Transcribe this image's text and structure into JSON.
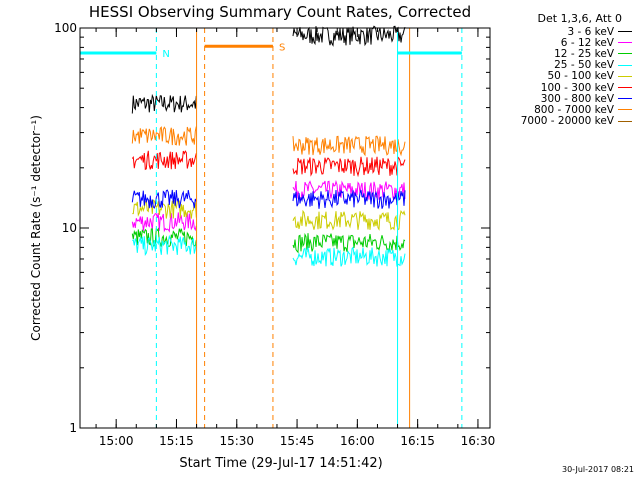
{
  "chart_data": {
    "type": "line",
    "title": "HESSI Observing Summary Count Rates, Corrected",
    "xlabel": "Start Time (29-Jul-17 14:51:42)",
    "ylabel": "Corrected Count Rate (s⁻¹ detector⁻¹)",
    "ylim": [
      1,
      100
    ],
    "yscale": "log",
    "yticks": [
      "1",
      "10",
      "100"
    ],
    "xlim": [
      "14:51",
      "16:33"
    ],
    "xticks": [
      "15:00",
      "15:15",
      "15:30",
      "15:45",
      "16:00",
      "16:15",
      "16:30"
    ],
    "grid": false,
    "legend_position": "right",
    "legend_header": "Det 1,3,6, Att 0",
    "series": [
      {
        "name": "3 - 6 keV",
        "color": "#000000",
        "segments": [
          {
            "start": "15:04",
            "end": "15:20",
            "level": 42
          },
          {
            "start": "15:44",
            "end": "16:12",
            "level": 92
          }
        ]
      },
      {
        "name": "6 - 12 keV",
        "color": "#ff00ff",
        "segments": [
          {
            "start": "15:04",
            "end": "15:20",
            "level": 10.8
          },
          {
            "start": "15:44",
            "end": "16:12",
            "level": 15.5
          }
        ]
      },
      {
        "name": "12 - 25 keV",
        "color": "#00cc00",
        "segments": [
          {
            "start": "15:04",
            "end": "15:20",
            "level": 9
          },
          {
            "start": "15:44",
            "end": "16:12",
            "level": 8.5
          }
        ]
      },
      {
        "name": "25 - 50 keV",
        "color": "#00ffff",
        "segments": [
          {
            "start": "15:04",
            "end": "15:20",
            "level": 8.2
          },
          {
            "start": "15:44",
            "end": "16:12",
            "level": 7.2
          }
        ]
      },
      {
        "name": "50 - 100 keV",
        "color": "#cccc00",
        "segments": [
          {
            "start": "15:04",
            "end": "15:20",
            "level": 12.5
          },
          {
            "start": "15:44",
            "end": "16:12",
            "level": 11
          }
        ]
      },
      {
        "name": "100 - 300 keV",
        "color": "#ff0000",
        "segments": [
          {
            "start": "15:04",
            "end": "15:20",
            "level": 22
          },
          {
            "start": "15:44",
            "end": "16:12",
            "level": 20.5
          }
        ]
      },
      {
        "name": "300 - 800 keV",
        "color": "#0000ff",
        "segments": [
          {
            "start": "15:04",
            "end": "15:20",
            "level": 14
          },
          {
            "start": "15:44",
            "end": "16:12",
            "level": 14
          }
        ]
      },
      {
        "name": "800 - 7000 keV",
        "color": "#ff8000",
        "segments": [
          {
            "start": "15:04",
            "end": "15:20",
            "level": 29
          },
          {
            "start": "15:44",
            "end": "16:12",
            "level": 26
          }
        ]
      },
      {
        "name": "7000 - 20000 keV",
        "color": "#a06000",
        "segments": []
      }
    ],
    "flags": [
      {
        "label": "N",
        "color": "#00ffff",
        "start": "14:51",
        "end": "15:10",
        "level": 75
      },
      {
        "label": "",
        "color": "#00ffff",
        "start": "16:10",
        "end": "16:26",
        "level": 75
      },
      {
        "label": "S",
        "color": "#ff8000",
        "start": "15:22",
        "end": "15:39",
        "level": 81
      }
    ],
    "markers": [
      {
        "time": "15:10",
        "color": "#00ffff",
        "style": "dashed"
      },
      {
        "time": "16:26",
        "color": "#00ffff",
        "style": "dashed"
      },
      {
        "time": "16:10",
        "color": "#00ffff",
        "style": "solid"
      },
      {
        "time": "15:22",
        "color": "#ff8000",
        "style": "dashed"
      },
      {
        "time": "15:39",
        "color": "#ff8000",
        "style": "dashed"
      },
      {
        "time": "15:20",
        "color": "#ff8000",
        "style": "solid"
      },
      {
        "time": "16:13",
        "color": "#ff8000",
        "style": "solid"
      }
    ]
  },
  "stamp": "30-Jul-2017 08:21"
}
